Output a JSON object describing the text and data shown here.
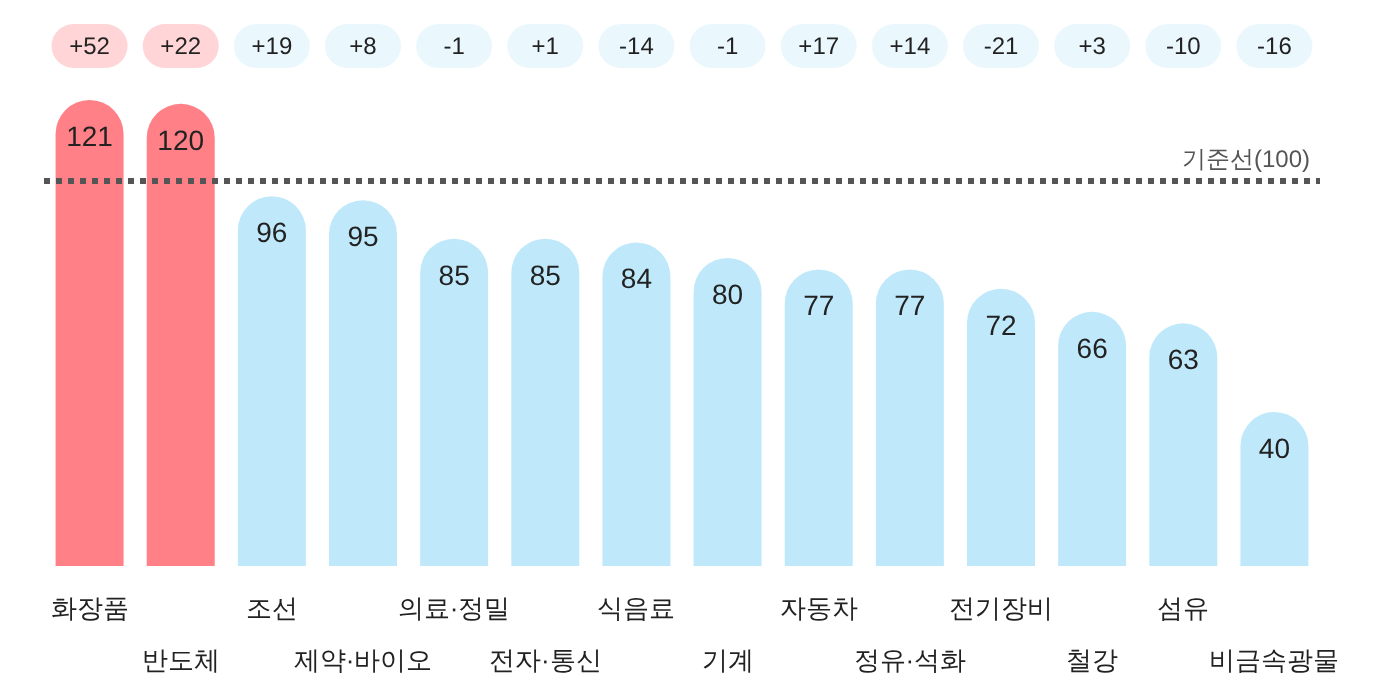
{
  "chart_data": {
    "type": "bar",
    "categories": [
      "화장품",
      "반도체",
      "조선",
      "제약·바이오",
      "의료·정밀",
      "전자·통신",
      "식음료",
      "기계",
      "자동차",
      "정유·석화",
      "전기장비",
      "철강",
      "섬유",
      "비금속광물"
    ],
    "values": [
      121,
      120,
      96,
      95,
      85,
      85,
      84,
      80,
      77,
      77,
      72,
      66,
      63,
      40
    ],
    "colors": [
      "#ff8087",
      "#ff8087",
      "#bfe9fb",
      "#bfe9fb",
      "#bfe9fb",
      "#bfe9fb",
      "#bfe9fb",
      "#bfe9fb",
      "#bfe9fb",
      "#bfe9fb",
      "#bfe9fb",
      "#bfe9fb",
      "#bfe9fb",
      "#bfe9fb"
    ],
    "data_labels": true,
    "annotations": [
      "+52",
      "+22",
      "+19",
      "+8",
      "-1",
      "+1",
      "-14",
      "-1",
      "+17",
      "+14",
      "-21",
      "+3",
      "-10",
      "-16"
    ],
    "ref_lines": [
      {
        "axis": "y",
        "value": 100,
        "label": "기준선(100)",
        "color": "#555555",
        "line_style": "dotted"
      }
    ],
    "grid": false
  }
}
